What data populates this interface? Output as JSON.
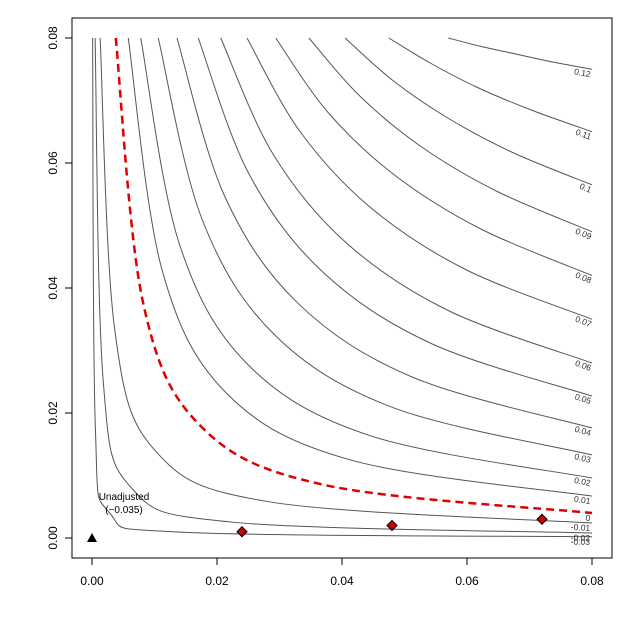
{
  "chart_data": {
    "type": "contour",
    "xlim": [
      -0.0032,
      0.0832
    ],
    "ylim": [
      -0.0032,
      0.0832
    ],
    "xticks": [
      {
        "value": 0,
        "label": "0.00"
      },
      {
        "value": 0.02,
        "label": "0.02"
      },
      {
        "value": 0.04,
        "label": "0.04"
      },
      {
        "value": 0.06,
        "label": "0.06"
      },
      {
        "value": 0.08,
        "label": "0.08"
      }
    ],
    "yticks": [
      {
        "value": 0,
        "label": "0.00"
      },
      {
        "value": 0.02,
        "label": "0.02"
      },
      {
        "value": 0.04,
        "label": "0.04"
      },
      {
        "value": 0.06,
        "label": "0.06"
      },
      {
        "value": 0.08,
        "label": "0.08"
      }
    ],
    "line_color": "#555555",
    "zero_color": "#e00000",
    "contours": [
      {
        "level": -0.03,
        "label": "-0.03",
        "x": [
          0.0001,
          0.00053,
          0.00283,
          0.01504,
          0.08
        ],
        "y": [
          0.08,
          0.01789,
          0.004,
          0.000894,
          0.0002
        ]
      },
      {
        "level": -0.02,
        "label": "-0.02",
        "x": [
          0.0005,
          0.00178,
          0.00632,
          0.0225,
          0.08
        ],
        "y": [
          0.08,
          0.0253,
          0.008,
          0.00253,
          0.0008
        ]
      },
      {
        "level": -0.01,
        "label": "-0.01",
        "x": [
          0.0013,
          0.00364,
          0.0102,
          0.0285,
          0.08
        ],
        "y": [
          0.08,
          0.0333,
          0.01387,
          0.00577,
          0.0024
        ]
      },
      {
        "level": 0,
        "label": "0",
        "x": [
          0.0038,
          0.00814,
          0.0174,
          0.0373,
          0.08
        ],
        "y": [
          0.08,
          0.0378,
          0.0179,
          0.00846,
          0.004
        ]
      },
      {
        "level": 0.01,
        "label": "0.01",
        "x": [
          0.0058,
          0.01118,
          0.02154,
          0.0415,
          0.08
        ],
        "y": [
          0.08,
          0.043,
          0.02314,
          0.01245,
          0.0067
        ]
      },
      {
        "level": 0.02,
        "label": "0.02",
        "x": [
          0.0078,
          0.01396,
          0.02499,
          0.0447,
          0.08
        ],
        "y": [
          0.08,
          0.0471,
          0.0277,
          0.01631,
          0.0096
        ]
      },
      {
        "level": 0.03,
        "label": "0.03",
        "x": [
          0.0106,
          0.01757,
          0.02912,
          0.04825,
          0.08
        ],
        "y": [
          0.08,
          0.0511,
          0.0326,
          0.02083,
          0.0133
        ]
      },
      {
        "level": 0.04,
        "label": "0.04",
        "x": [
          0.0136,
          0.02118,
          0.03298,
          0.05137,
          0.08
        ],
        "y": [
          0.08,
          0.0548,
          0.03753,
          0.0257,
          0.0176
        ]
      },
      {
        "level": 0.05,
        "label": "0.05",
        "x": [
          0.017,
          0.02504,
          0.03688,
          0.05431,
          0.08
        ],
        "y": [
          0.08,
          0.0584,
          0.0426,
          0.0311,
          0.0227
        ]
      },
      {
        "level": 0.06,
        "label": "0.06",
        "x": [
          0.0206,
          0.02892,
          0.0406,
          0.05699,
          0.08
        ],
        "y": [
          0.08,
          0.0615,
          0.0473,
          0.0364,
          0.028
        ]
      },
      {
        "level": 0.07,
        "label": "0.07",
        "x": [
          0.0248,
          0.03324,
          0.04454,
          0.05969,
          0.08
        ],
        "y": [
          0.08,
          0.0651,
          0.0529,
          0.043,
          0.035
        ]
      },
      {
        "level": 0.08,
        "label": "0.08",
        "x": [
          0.0294,
          0.03776,
          0.0485,
          0.0623,
          0.08
        ],
        "y": [
          0.08,
          0.0681,
          0.058,
          0.0494,
          0.042
        ]
      },
      {
        "level": 0.09,
        "label": "0.09",
        "x": [
          0.0347,
          0.04276,
          0.05269,
          0.06493,
          0.08
        ],
        "y": [
          0.08,
          0.0708,
          0.0626,
          0.0554,
          0.049
        ]
      },
      {
        "level": 0.1,
        "label": "0.1",
        "x": [
          0.0405,
          0.04801,
          0.05692,
          0.06748,
          0.08
        ],
        "y": [
          0.08,
          0.0733,
          0.0672,
          0.0616,
          0.0565
        ]
      },
      {
        "level": 0.11,
        "label": "0.11",
        "x": [
          0.0475,
          0.05411,
          0.06164,
          0.07022,
          0.08
        ],
        "y": [
          0.08,
          0.076,
          0.0721,
          0.0685,
          0.065
        ]
      },
      {
        "level": 0.12,
        "label": "0.12",
        "x": [
          0.057,
          0.06204,
          0.06753,
          0.0735,
          0.08
        ],
        "y": [
          0.08,
          0.0787,
          0.0775,
          0.0762,
          0.075
        ]
      }
    ],
    "points": {
      "x": [
        0.024,
        0.048,
        0.072
      ],
      "y": [
        0.001,
        0.002,
        0.003
      ],
      "color": "#cc0000"
    },
    "reference": {
      "x": 0,
      "y": 0,
      "annotation": [
        "Unadjusted",
        "(−0.035)"
      ]
    }
  }
}
